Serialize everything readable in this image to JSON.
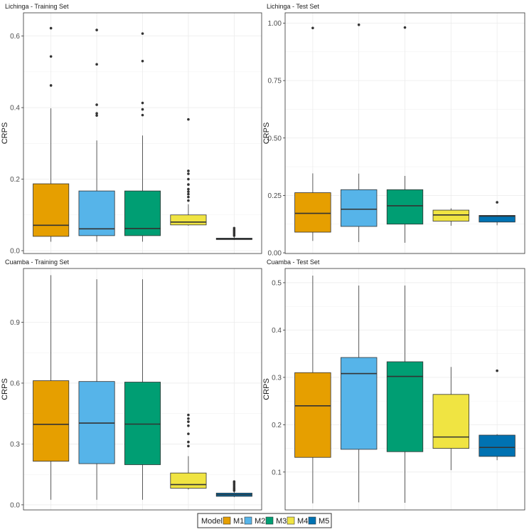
{
  "legend": {
    "title": "Model",
    "items": [
      {
        "label": "M1",
        "color": "#E69F00"
      },
      {
        "label": "M2",
        "color": "#56B4E9"
      },
      {
        "label": "M3",
        "color": "#009E73"
      },
      {
        "label": "M4",
        "color": "#F0E442"
      },
      {
        "label": "M5",
        "color": "#0072B2"
      }
    ]
  },
  "chart_data": [
    {
      "type": "box",
      "title": "Lichinga - Training Set",
      "ylabel": "CRPS",
      "ylim": [
        -0.008,
        0.665
      ],
      "yticks": [
        0.0,
        0.2,
        0.4,
        0.6
      ],
      "ytick_labels": [
        "0.0",
        "0.2",
        "0.4",
        "0.6"
      ],
      "categories": [
        "M1",
        "M2",
        "M3",
        "M4",
        "M5"
      ],
      "boxes": [
        {
          "min": 0.025,
          "q1": 0.04,
          "median": 0.071,
          "q3": 0.187,
          "max": 0.398,
          "outliers": [
            0.462,
            0.543,
            0.622
          ]
        },
        {
          "min": 0.025,
          "q1": 0.042,
          "median": 0.061,
          "q3": 0.167,
          "max": 0.308,
          "outliers": [
            0.378,
            0.384,
            0.408,
            0.521,
            0.617
          ]
        },
        {
          "min": 0.025,
          "q1": 0.042,
          "median": 0.062,
          "q3": 0.167,
          "max": 0.322,
          "outliers": [
            0.379,
            0.395,
            0.413,
            0.53,
            0.607
          ]
        },
        {
          "min": 0.07,
          "q1": 0.072,
          "median": 0.08,
          "q3": 0.1,
          "max": 0.13,
          "outliers": [
            0.14,
            0.15,
            0.158,
            0.165,
            0.172,
            0.185,
            0.2,
            0.215,
            0.223,
            0.367
          ]
        },
        {
          "min": 0.03,
          "q1": 0.031,
          "median": 0.033,
          "q3": 0.035,
          "max": 0.038,
          "outliers": [
            0.042,
            0.046,
            0.05,
            0.054,
            0.058,
            0.063
          ]
        }
      ]
    },
    {
      "type": "box",
      "title": "Lichinga - Test Set",
      "ylabel": "CRPS",
      "ylim": [
        -0.003,
        1.045
      ],
      "yticks": [
        0.0,
        0.25,
        0.5,
        0.75,
        1.0
      ],
      "ytick_labels": [
        "0.00",
        "0.25",
        "0.50",
        "0.75",
        "1.00"
      ],
      "categories": [
        "M1",
        "M2",
        "M3",
        "M4",
        "M5"
      ],
      "boxes": [
        {
          "min": 0.052,
          "q1": 0.09,
          "median": 0.172,
          "q3": 0.262,
          "max": 0.346,
          "outliers": [
            0.979
          ]
        },
        {
          "min": 0.047,
          "q1": 0.115,
          "median": 0.19,
          "q3": 0.275,
          "max": 0.345,
          "outliers": [
            0.993
          ]
        },
        {
          "min": 0.044,
          "q1": 0.125,
          "median": 0.205,
          "q3": 0.275,
          "max": 0.335,
          "outliers": [
            0.981
          ]
        },
        {
          "min": 0.118,
          "q1": 0.138,
          "median": 0.165,
          "q3": 0.186,
          "max": 0.194,
          "outliers": []
        },
        {
          "min": 0.12,
          "q1": 0.134,
          "median": 0.16,
          "q3": 0.163,
          "max": 0.163,
          "outliers": [
            0.22
          ]
        }
      ]
    },
    {
      "type": "box",
      "title": "Cuamba - Training Set",
      "ylabel": "CRPS",
      "ylim": [
        -0.025,
        1.165
      ],
      "yticks": [
        0.0,
        0.3,
        0.6,
        0.9
      ],
      "ytick_labels": [
        "0.0",
        "0.3",
        "0.6",
        "0.9"
      ],
      "categories": [
        "M1",
        "M2",
        "M3",
        "M4",
        "M5"
      ],
      "boxes": [
        {
          "min": 0.025,
          "q1": 0.215,
          "median": 0.397,
          "q3": 0.612,
          "max": 1.132,
          "outliers": []
        },
        {
          "min": 0.025,
          "q1": 0.203,
          "median": 0.403,
          "q3": 0.608,
          "max": 1.112,
          "outliers": []
        },
        {
          "min": 0.025,
          "q1": 0.198,
          "median": 0.398,
          "q3": 0.605,
          "max": 1.112,
          "outliers": []
        },
        {
          "min": 0.075,
          "q1": 0.082,
          "median": 0.1,
          "q3": 0.157,
          "max": 0.24,
          "outliers": [
            0.29,
            0.31,
            0.35,
            0.39,
            0.41,
            0.425,
            0.443
          ]
        },
        {
          "min": 0.038,
          "q1": 0.042,
          "median": 0.05,
          "q3": 0.058,
          "max": 0.064,
          "outliers": [
            0.07,
            0.077,
            0.084,
            0.092,
            0.1,
            0.108,
            0.115
          ]
        }
      ]
    },
    {
      "type": "box",
      "title": "Cuamba - Test Set",
      "ylabel": "CRPS",
      "ylim": [
        0.02,
        0.53
      ],
      "yticks": [
        0.1,
        0.2,
        0.3,
        0.4,
        0.5
      ],
      "ytick_labels": [
        "0.1",
        "0.2",
        "0.3",
        "0.4",
        "0.5"
      ],
      "categories": [
        "M1",
        "M2",
        "M3",
        "M4",
        "M5"
      ],
      "boxes": [
        {
          "min": 0.034,
          "q1": 0.131,
          "median": 0.24,
          "q3": 0.31,
          "max": 0.515,
          "outliers": []
        },
        {
          "min": 0.036,
          "q1": 0.148,
          "median": 0.308,
          "q3": 0.342,
          "max": 0.494,
          "outliers": []
        },
        {
          "min": 0.035,
          "q1": 0.143,
          "median": 0.302,
          "q3": 0.333,
          "max": 0.494,
          "outliers": []
        },
        {
          "min": 0.104,
          "q1": 0.15,
          "median": 0.174,
          "q3": 0.264,
          "max": 0.322,
          "outliers": []
        },
        {
          "min": 0.125,
          "q1": 0.133,
          "median": 0.152,
          "q3": 0.178,
          "max": 0.18,
          "outliers": [
            0.314
          ]
        }
      ]
    }
  ]
}
